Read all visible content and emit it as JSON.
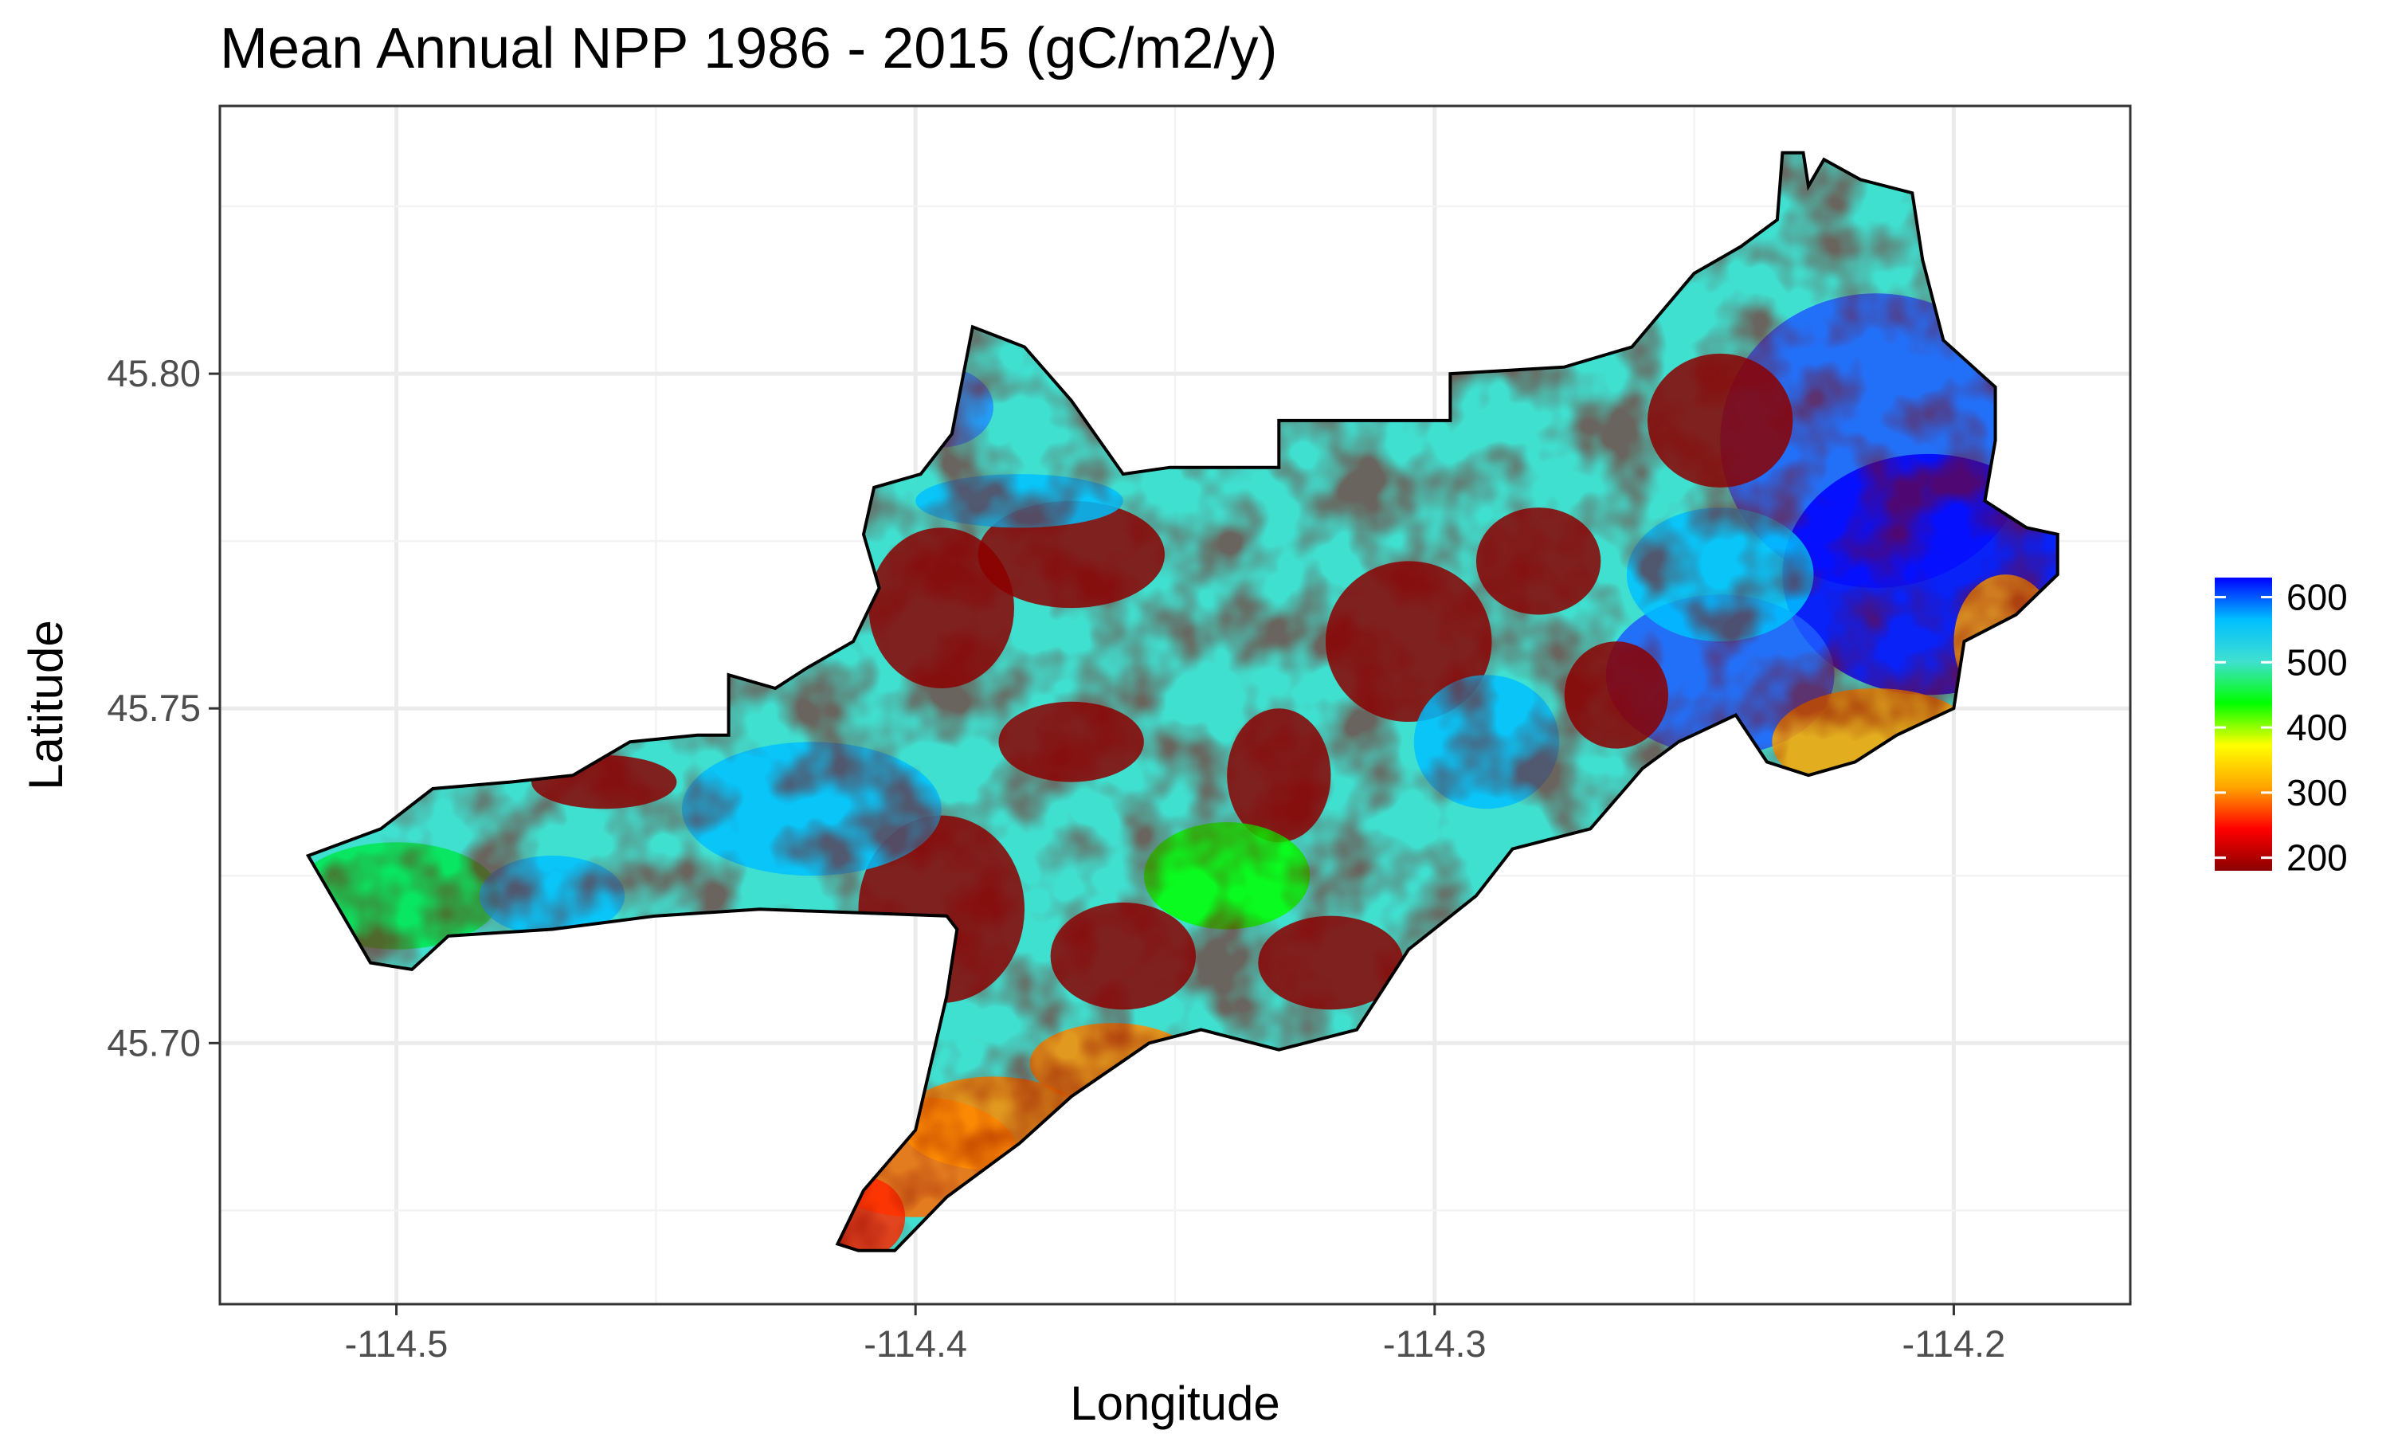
{
  "title": "Mean Annual NPP 1986 - 2015 (gC/m2/y)",
  "x_axis": {
    "label": "Longitude",
    "ticks": [
      "-114.5",
      "-114.4",
      "-114.3",
      "-114.2"
    ]
  },
  "y_axis": {
    "label": "Latitude",
    "ticks": [
      "45.70",
      "45.75",
      "45.80"
    ]
  },
  "legend": {
    "labels": [
      "200",
      "300",
      "400",
      "500",
      "600"
    ],
    "colors": [
      "#8b0000",
      "#ff0000",
      "#ffa500",
      "#ffff00",
      "#00ff00",
      "#40e0d0",
      "#00bfff",
      "#0000ff"
    ]
  },
  "chart_data": {
    "type": "heatmap",
    "title": "Mean Annual NPP 1986 - 2015 (gC/m2/y)",
    "xlabel": "Longitude",
    "ylabel": "Latitude",
    "xlim": [
      -114.534,
      -114.166
    ],
    "ylim": [
      45.661,
      45.84
    ],
    "x_ticks": [
      -114.5,
      -114.4,
      -114.3,
      -114.2
    ],
    "y_ticks": [
      45.7,
      45.75,
      45.8
    ],
    "grid": true,
    "legend_position": "right",
    "color_scale": {
      "min": 180,
      "max": 630,
      "breaks": [
        200,
        300,
        400,
        500,
        600
      ]
    },
    "boundary": [
      [
        -114.517,
        45.728
      ],
      [
        -114.503,
        45.732
      ],
      [
        -114.493,
        45.738
      ],
      [
        -114.478,
        45.739
      ],
      [
        -114.466,
        45.74
      ],
      [
        -114.455,
        45.745
      ],
      [
        -114.442,
        45.746
      ],
      [
        -114.436,
        45.746
      ],
      [
        -114.436,
        45.755
      ],
      [
        -114.427,
        45.753
      ],
      [
        -114.421,
        45.756
      ],
      [
        -114.412,
        45.76
      ],
      [
        -114.407,
        45.768
      ],
      [
        -114.41,
        45.776
      ],
      [
        -114.408,
        45.783
      ],
      [
        -114.399,
        45.785
      ],
      [
        -114.393,
        45.791
      ],
      [
        -114.389,
        45.807
      ],
      [
        -114.379,
        45.804
      ],
      [
        -114.37,
        45.796
      ],
      [
        -114.36,
        45.785
      ],
      [
        -114.351,
        45.786
      ],
      [
        -114.34,
        45.786
      ],
      [
        -114.33,
        45.786
      ],
      [
        -114.33,
        45.793
      ],
      [
        -114.31,
        45.793
      ],
      [
        -114.297,
        45.793
      ],
      [
        -114.297,
        45.8
      ],
      [
        -114.275,
        45.801
      ],
      [
        -114.262,
        45.804
      ],
      [
        -114.25,
        45.815
      ],
      [
        -114.241,
        45.819
      ],
      [
        -114.234,
        45.823
      ],
      [
        -114.233,
        45.833
      ],
      [
        -114.229,
        45.833
      ],
      [
        -114.228,
        45.828
      ],
      [
        -114.225,
        45.832
      ],
      [
        -114.218,
        45.829
      ],
      [
        -114.208,
        45.827
      ],
      [
        -114.206,
        45.817
      ],
      [
        -114.202,
        45.805
      ],
      [
        -114.192,
        45.798
      ],
      [
        -114.192,
        45.79
      ],
      [
        -114.194,
        45.781
      ],
      [
        -114.186,
        45.777
      ],
      [
        -114.18,
        45.776
      ],
      [
        -114.18,
        45.77
      ],
      [
        -114.188,
        45.764
      ],
      [
        -114.198,
        45.76
      ],
      [
        -114.2,
        45.75
      ],
      [
        -114.211,
        45.746
      ],
      [
        -114.219,
        45.742
      ],
      [
        -114.228,
        45.74
      ],
      [
        -114.236,
        45.742
      ],
      [
        -114.242,
        45.749
      ],
      [
        -114.253,
        45.745
      ],
      [
        -114.26,
        45.741
      ],
      [
        -114.27,
        45.732
      ],
      [
        -114.285,
        45.729
      ],
      [
        -114.292,
        45.722
      ],
      [
        -114.305,
        45.714
      ],
      [
        -114.315,
        45.702
      ],
      [
        -114.33,
        45.699
      ],
      [
        -114.345,
        45.702
      ],
      [
        -114.355,
        45.7
      ],
      [
        -114.37,
        45.692
      ],
      [
        -114.38,
        45.685
      ],
      [
        -114.394,
        45.677
      ],
      [
        -114.404,
        45.669
      ],
      [
        -114.411,
        45.669
      ],
      [
        -114.415,
        45.67
      ],
      [
        -114.41,
        45.678
      ],
      [
        -114.4,
        45.687
      ],
      [
        -114.397,
        45.697
      ],
      [
        -114.394,
        45.707
      ],
      [
        -114.392,
        45.717
      ],
      [
        -114.394,
        45.719
      ],
      [
        -114.43,
        45.72
      ],
      [
        -114.45,
        45.719
      ],
      [
        -114.47,
        45.717
      ],
      [
        -114.49,
        45.716
      ],
      [
        -114.497,
        45.711
      ],
      [
        -114.505,
        45.712
      ],
      [
        -114.517,
        45.728
      ]
    ]
  }
}
